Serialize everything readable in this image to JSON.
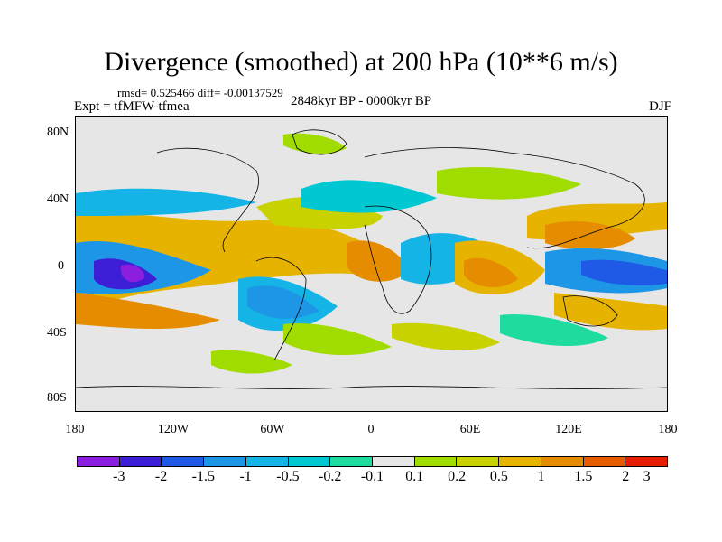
{
  "title": "Divergence (smoothed) at 200 hPa (10**6 m/s)",
  "stats": "rmsd= 0.525466 diff= -0.00137529",
  "experiment": "Expt = tfMFW-tfmea",
  "period": "2848kyr BP - 0000kyr BP",
  "season": "DJF",
  "lat_labels": [
    "80N",
    "40N",
    "0",
    "40S",
    "80S"
  ],
  "lon_labels": [
    "180",
    "120W",
    "60W",
    "0",
    "60E",
    "120E",
    "180"
  ],
  "colorbar": {
    "colors": [
      "#8c1ee0",
      "#3c1ed6",
      "#1e5ae6",
      "#1e96e6",
      "#14b4e6",
      "#00c8d2",
      "#1edca0",
      "#e6e6e6",
      "#a0dc00",
      "#c8d200",
      "#e6b400",
      "#e68c00",
      "#e65a00",
      "#e61e00"
    ],
    "labels": [
      "-3",
      "-2",
      "-1.5",
      "-1",
      "-0.5",
      "-0.2",
      "-0.1",
      "0.1",
      "0.2",
      "0.5",
      "1",
      "1.5",
      "2",
      "3"
    ]
  }
}
